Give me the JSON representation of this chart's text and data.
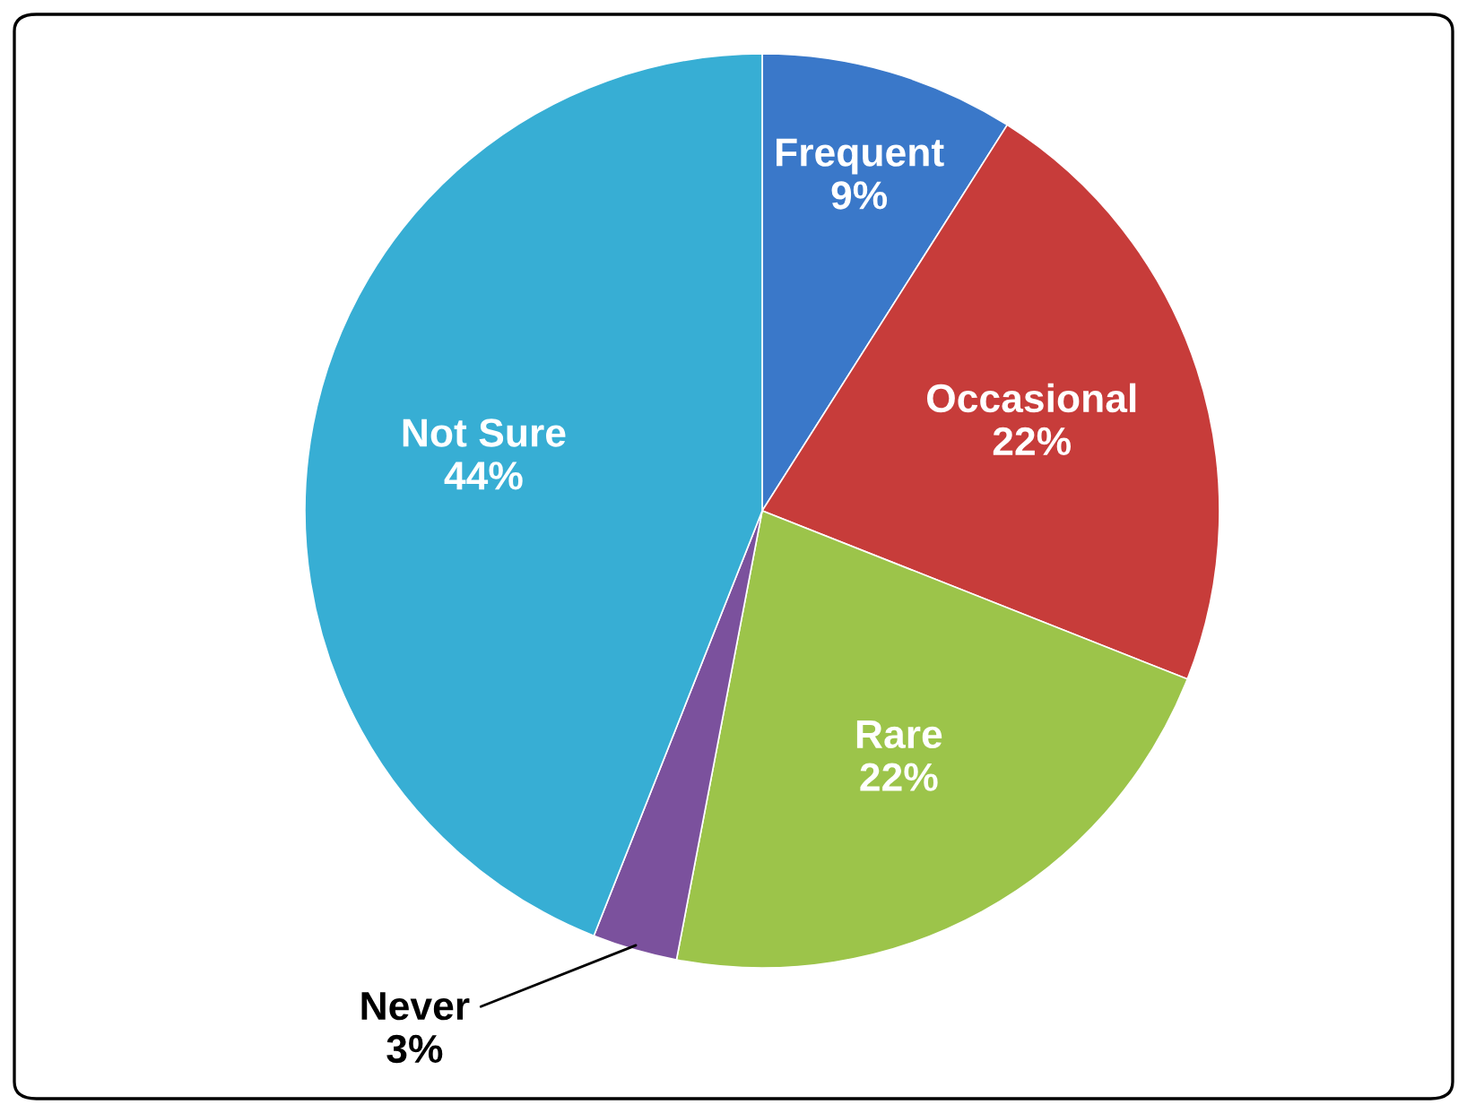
{
  "chart_data": {
    "type": "pie",
    "categories": [
      "Frequent",
      "Occasional",
      "Rare",
      "Never",
      "Not Sure"
    ],
    "values": [
      9,
      22,
      22,
      3,
      44
    ],
    "value_labels": [
      "9%",
      "22%",
      "22%",
      "3%",
      "44%"
    ],
    "colors": [
      "#3a78c9",
      "#c73c3a",
      "#9cc44a",
      "#7b519d",
      "#37aed4"
    ]
  }
}
